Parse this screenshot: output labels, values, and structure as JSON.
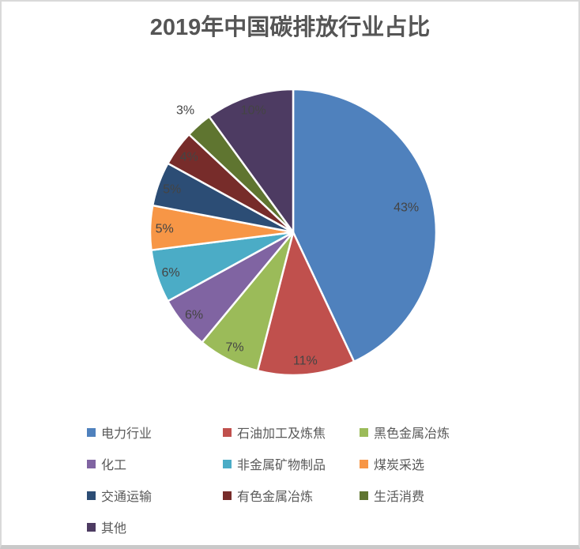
{
  "window": {
    "background": "#ffffff",
    "border_color": "#d9d9d9",
    "bottom_edge_color": "#c9c9c9"
  },
  "chart_data": {
    "type": "pie",
    "title": "2019年中国碳排放行业占比",
    "categories": [
      "电力行业",
      "石油加工及炼焦",
      "黑色金属冶炼",
      "化工",
      "非金属矿物制品",
      "煤炭采选",
      "交通运输",
      "有色金属冶炼",
      "生活消费",
      "其他"
    ],
    "values": [
      43,
      11,
      7,
      6,
      6,
      5,
      5,
      4,
      3,
      10
    ],
    "data_labels": [
      "43%",
      "11%",
      "7%",
      "6%",
      "6%",
      "5%",
      "5%",
      "4%",
      "3%",
      "10%"
    ],
    "colors": [
      "#4F81BD",
      "#C0504D",
      "#9BBB59",
      "#8064A2",
      "#4BACC6",
      "#F79646",
      "#2C4D75",
      "#772C2A",
      "#5F7530",
      "#4D3B62"
    ],
    "start_angle_deg": 0,
    "direction": "clockwise",
    "slice_border_color": "#FFFFFF",
    "legend_position": "bottom",
    "outside_label_categories": [
      "生活消费"
    ]
  },
  "styles": {
    "title_color": "#555555",
    "data_label_color": "#444444",
    "legend_text_color": "#595959"
  }
}
